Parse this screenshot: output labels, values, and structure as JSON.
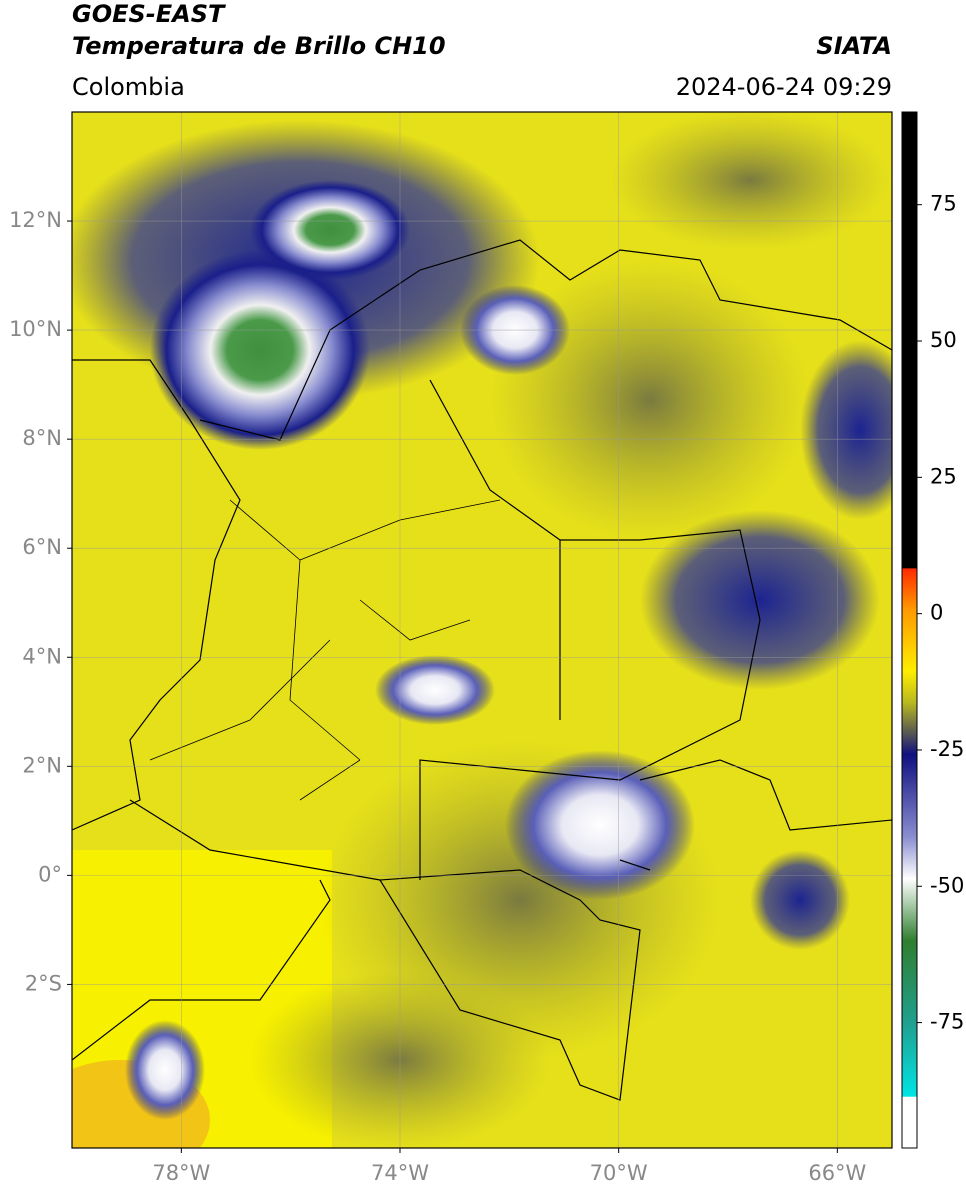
{
  "header": {
    "title": "GOES-EAST",
    "subtitle": "Temperatura de Brillo CH10",
    "region": "Colombia",
    "source": "SIATA",
    "datetime": "2024-06-24 09:29"
  },
  "map": {
    "lon_range": [
      -80,
      -65
    ],
    "lat_range": [
      -5,
      14
    ],
    "grid": true,
    "lon_ticks": [
      {
        "value": -78,
        "label": "78°W"
      },
      {
        "value": -74,
        "label": "74°W"
      },
      {
        "value": -70,
        "label": "70°W"
      },
      {
        "value": -66,
        "label": "66°W"
      }
    ],
    "lat_ticks": [
      {
        "value": 12,
        "label": "12°N"
      },
      {
        "value": 10,
        "label": "10°N"
      },
      {
        "value": 8,
        "label": "8°N"
      },
      {
        "value": 6,
        "label": "6°N"
      },
      {
        "value": 4,
        "label": "4°N"
      },
      {
        "value": 2,
        "label": "2°N"
      },
      {
        "value": 0,
        "label": "0°"
      },
      {
        "value": -2,
        "label": "2°S"
      }
    ]
  },
  "colorbar": {
    "range": [
      -98,
      92
    ],
    "ticks": [
      75,
      50,
      25,
      0,
      -25,
      -50,
      -75
    ]
  }
}
